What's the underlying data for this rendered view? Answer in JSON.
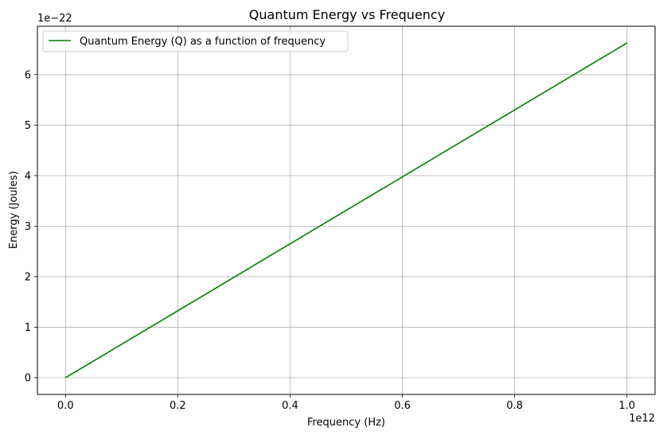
{
  "chart_data": {
    "type": "line",
    "title": "Quantum Energy vs Frequency",
    "xlabel": "Frequency (Hz)",
    "ylabel": "Energy (Joules)",
    "x_offset_label": "1e12",
    "y_offset_label": "1e−22",
    "xlim": [
      -0.05,
      1.05
    ],
    "ylim": [
      -0.331,
      6.957
    ],
    "x_ticks": [
      0.0,
      0.2,
      0.4,
      0.6,
      0.8,
      1.0
    ],
    "x_tick_labels": [
      "0.0",
      "0.2",
      "0.4",
      "0.6",
      "0.8",
      "1.0"
    ],
    "y_ticks": [
      0,
      1,
      2,
      3,
      4,
      5,
      6
    ],
    "y_tick_labels": [
      "0",
      "1",
      "2",
      "3",
      "4",
      "5",
      "6"
    ],
    "grid": true,
    "legend_position": "top-left",
    "series": [
      {
        "name": "Quantum Energy (Q) as a function of frequency",
        "color": "#008000",
        "x": [
          0.0,
          0.2,
          0.4,
          0.6,
          0.8,
          1.0
        ],
        "y": [
          0.0,
          1.325,
          2.65,
          3.976,
          5.301,
          6.626
        ]
      }
    ]
  }
}
